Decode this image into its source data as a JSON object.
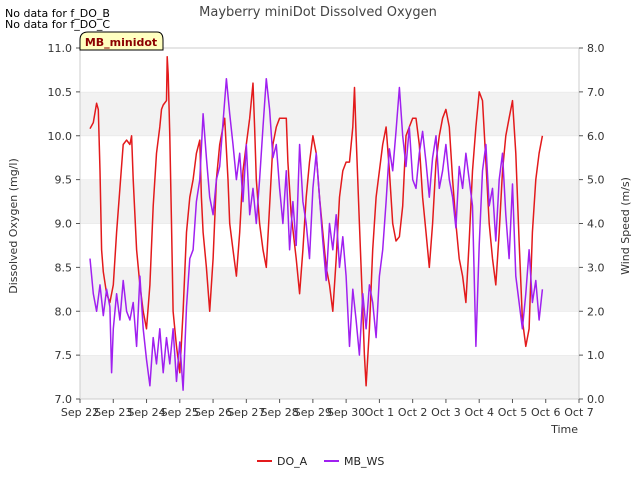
{
  "chart_data": {
    "type": "line",
    "title": "Mayberry miniDot Dissolved Oxygen",
    "xlabel": "Time",
    "ylabel_left": "Dissolved Oxygen (mg/l)",
    "ylabel_right": "Wind Speed (m/s)",
    "x_ticks": [
      "Sep 22",
      "Sep 23",
      "Sep 24",
      "Sep 25",
      "Sep 26",
      "Sep 27",
      "Sep 28",
      "Sep 29",
      "Sep 30",
      "Oct 1",
      "Oct 2",
      "Oct 3",
      "Oct 4",
      "Oct 5",
      "Oct 6",
      "Oct 7"
    ],
    "xlim_days": [
      0,
      15
    ],
    "ylim_left": [
      7.0,
      11.0
    ],
    "ylim_right": [
      0.0,
      8.0
    ],
    "y_ticks_left": [
      "7.0",
      "7.5",
      "8.0",
      "8.5",
      "9.0",
      "9.5",
      "10.0",
      "10.5",
      "11.0"
    ],
    "y_ticks_right": [
      "0.0",
      "1.0",
      "2.0",
      "3.0",
      "4.0",
      "5.0",
      "6.0",
      "7.0",
      "8.0"
    ],
    "grid": "horizontal bands",
    "legend_placement": "bottom-center",
    "no_data_notes": [
      "No data for f_DO_B",
      "No data for f_DO_C"
    ],
    "site_label": "MB_minidot",
    "series": [
      {
        "name": "DO_A",
        "axis": "left",
        "color": "#e31a1c",
        "points": [
          [
            0.3,
            10.08
          ],
          [
            0.4,
            10.15
          ],
          [
            0.5,
            10.37
          ],
          [
            0.55,
            10.3
          ],
          [
            0.6,
            9.6
          ],
          [
            0.65,
            8.7
          ],
          [
            0.7,
            8.45
          ],
          [
            0.8,
            8.2
          ],
          [
            0.9,
            8.1
          ],
          [
            1.0,
            8.3
          ],
          [
            1.1,
            8.9
          ],
          [
            1.2,
            9.4
          ],
          [
            1.3,
            9.9
          ],
          [
            1.4,
            9.95
          ],
          [
            1.5,
            9.9
          ],
          [
            1.55,
            10.0
          ],
          [
            1.6,
            9.5
          ],
          [
            1.7,
            8.7
          ],
          [
            1.8,
            8.3
          ],
          [
            1.9,
            8.0
          ],
          [
            2.0,
            7.8
          ],
          [
            2.1,
            8.3
          ],
          [
            2.2,
            9.2
          ],
          [
            2.3,
            9.8
          ],
          [
            2.4,
            10.1
          ],
          [
            2.45,
            10.3
          ],
          [
            2.5,
            10.35
          ],
          [
            2.6,
            10.4
          ],
          [
            2.62,
            10.9
          ],
          [
            2.65,
            10.7
          ],
          [
            2.7,
            10.0
          ],
          [
            2.75,
            9.0
          ],
          [
            2.8,
            8.0
          ],
          [
            2.9,
            7.6
          ],
          [
            3.0,
            7.3
          ],
          [
            3.1,
            8.0
          ],
          [
            3.2,
            8.9
          ],
          [
            3.3,
            9.3
          ],
          [
            3.4,
            9.5
          ],
          [
            3.5,
            9.8
          ],
          [
            3.6,
            9.95
          ],
          [
            3.65,
            9.3
          ],
          [
            3.7,
            8.9
          ],
          [
            3.8,
            8.5
          ],
          [
            3.9,
            8.0
          ],
          [
            4.0,
            8.6
          ],
          [
            4.1,
            9.5
          ],
          [
            4.2,
            9.9
          ],
          [
            4.3,
            10.1
          ],
          [
            4.35,
            10.2
          ],
          [
            4.45,
            9.5
          ],
          [
            4.5,
            9.0
          ],
          [
            4.6,
            8.7
          ],
          [
            4.7,
            8.4
          ],
          [
            4.8,
            8.9
          ],
          [
            4.9,
            9.6
          ],
          [
            5.0,
            9.9
          ],
          [
            5.1,
            10.2
          ],
          [
            5.2,
            10.6
          ],
          [
            5.25,
            10.1
          ],
          [
            5.3,
            9.5
          ],
          [
            5.4,
            9.0
          ],
          [
            5.5,
            8.7
          ],
          [
            5.6,
            8.5
          ],
          [
            5.7,
            9.2
          ],
          [
            5.8,
            9.9
          ],
          [
            5.9,
            10.1
          ],
          [
            6.0,
            10.2
          ],
          [
            6.2,
            10.2
          ],
          [
            6.25,
            9.7
          ],
          [
            6.35,
            9.1
          ],
          [
            6.5,
            8.6
          ],
          [
            6.6,
            8.2
          ],
          [
            6.7,
            8.7
          ],
          [
            6.8,
            9.3
          ],
          [
            6.9,
            9.7
          ],
          [
            7.0,
            10.0
          ],
          [
            7.1,
            9.8
          ],
          [
            7.2,
            9.3
          ],
          [
            7.3,
            8.9
          ],
          [
            7.4,
            8.5
          ],
          [
            7.5,
            8.3
          ],
          [
            7.6,
            8.0
          ],
          [
            7.7,
            8.6
          ],
          [
            7.8,
            9.3
          ],
          [
            7.9,
            9.6
          ],
          [
            8.0,
            9.7
          ],
          [
            8.1,
            9.7
          ],
          [
            8.2,
            10.1
          ],
          [
            8.25,
            10.55
          ],
          [
            8.3,
            10.0
          ],
          [
            8.4,
            9.0
          ],
          [
            8.5,
            8.0
          ],
          [
            8.55,
            7.5
          ],
          [
            8.6,
            7.15
          ],
          [
            8.7,
            7.8
          ],
          [
            8.8,
            8.7
          ],
          [
            8.9,
            9.3
          ],
          [
            9.0,
            9.6
          ],
          [
            9.1,
            9.9
          ],
          [
            9.2,
            10.1
          ],
          [
            9.3,
            9.6
          ],
          [
            9.4,
            9.0
          ],
          [
            9.5,
            8.8
          ],
          [
            9.6,
            8.85
          ],
          [
            9.7,
            9.2
          ],
          [
            9.8,
            10.0
          ],
          [
            9.9,
            10.1
          ],
          [
            10.0,
            10.2
          ],
          [
            10.1,
            10.2
          ],
          [
            10.2,
            9.9
          ],
          [
            10.3,
            9.3
          ],
          [
            10.4,
            8.9
          ],
          [
            10.5,
            8.5
          ],
          [
            10.6,
            9.0
          ],
          [
            10.7,
            9.7
          ],
          [
            10.8,
            10.0
          ],
          [
            10.9,
            10.2
          ],
          [
            11.0,
            10.3
          ],
          [
            11.1,
            10.1
          ],
          [
            11.2,
            9.5
          ],
          [
            11.3,
            9.0
          ],
          [
            11.4,
            8.6
          ],
          [
            11.5,
            8.4
          ],
          [
            11.6,
            8.1
          ],
          [
            11.7,
            8.8
          ],
          [
            11.8,
            9.6
          ],
          [
            11.9,
            10.1
          ],
          [
            12.0,
            10.5
          ],
          [
            12.1,
            10.4
          ],
          [
            12.2,
            9.7
          ],
          [
            12.3,
            9.0
          ],
          [
            12.4,
            8.6
          ],
          [
            12.5,
            8.3
          ],
          [
            12.6,
            8.9
          ],
          [
            12.7,
            9.6
          ],
          [
            12.8,
            10.0
          ],
          [
            12.9,
            10.2
          ],
          [
            13.0,
            10.4
          ],
          [
            13.1,
            9.8
          ],
          [
            13.2,
            8.8
          ],
          [
            13.3,
            7.9
          ],
          [
            13.4,
            7.6
          ],
          [
            13.5,
            7.8
          ],
          [
            13.6,
            8.9
          ],
          [
            13.7,
            9.5
          ],
          [
            13.8,
            9.8
          ],
          [
            13.9,
            10.0
          ]
        ]
      },
      {
        "name": "MB_WS",
        "axis": "right",
        "color": "#a020f0",
        "points": [
          [
            0.3,
            3.2
          ],
          [
            0.4,
            2.4
          ],
          [
            0.5,
            2.0
          ],
          [
            0.6,
            2.6
          ],
          [
            0.7,
            1.9
          ],
          [
            0.8,
            2.5
          ],
          [
            0.9,
            2.1
          ],
          [
            0.95,
            0.6
          ],
          [
            1.0,
            1.6
          ],
          [
            1.1,
            2.4
          ],
          [
            1.2,
            1.8
          ],
          [
            1.3,
            2.7
          ],
          [
            1.4,
            2.0
          ],
          [
            1.5,
            1.8
          ],
          [
            1.6,
            2.2
          ],
          [
            1.7,
            1.2
          ],
          [
            1.8,
            2.8
          ],
          [
            1.9,
            1.6
          ],
          [
            2.0,
            0.9
          ],
          [
            2.1,
            0.3
          ],
          [
            2.2,
            1.4
          ],
          [
            2.3,
            0.8
          ],
          [
            2.4,
            1.6
          ],
          [
            2.5,
            0.6
          ],
          [
            2.6,
            1.4
          ],
          [
            2.7,
            0.8
          ],
          [
            2.8,
            1.6
          ],
          [
            2.9,
            0.4
          ],
          [
            3.0,
            1.3
          ],
          [
            3.1,
            0.2
          ],
          [
            3.2,
            2.1
          ],
          [
            3.3,
            3.2
          ],
          [
            3.4,
            3.4
          ],
          [
            3.5,
            4.5
          ],
          [
            3.6,
            5.0
          ],
          [
            3.7,
            6.5
          ],
          [
            3.8,
            5.5
          ],
          [
            3.9,
            4.6
          ],
          [
            4.0,
            4.2
          ],
          [
            4.1,
            5.0
          ],
          [
            4.2,
            5.3
          ],
          [
            4.3,
            6.3
          ],
          [
            4.4,
            7.3
          ],
          [
            4.5,
            6.5
          ],
          [
            4.6,
            5.8
          ],
          [
            4.7,
            5.0
          ],
          [
            4.8,
            5.6
          ],
          [
            4.9,
            4.5
          ],
          [
            5.0,
            5.8
          ],
          [
            5.1,
            4.2
          ],
          [
            5.2,
            4.8
          ],
          [
            5.3,
            4.0
          ],
          [
            5.4,
            5.0
          ],
          [
            5.5,
            6.2
          ],
          [
            5.6,
            7.3
          ],
          [
            5.7,
            6.6
          ],
          [
            5.8,
            5.5
          ],
          [
            5.9,
            5.8
          ],
          [
            6.0,
            4.8
          ],
          [
            6.1,
            4.0
          ],
          [
            6.2,
            5.2
          ],
          [
            6.3,
            3.4
          ],
          [
            6.4,
            4.5
          ],
          [
            6.5,
            3.5
          ],
          [
            6.6,
            5.8
          ],
          [
            6.7,
            4.5
          ],
          [
            6.8,
            4.0
          ],
          [
            6.9,
            3.2
          ],
          [
            7.0,
            4.8
          ],
          [
            7.1,
            5.6
          ],
          [
            7.2,
            4.6
          ],
          [
            7.3,
            3.6
          ],
          [
            7.4,
            2.7
          ],
          [
            7.5,
            4.0
          ],
          [
            7.6,
            3.4
          ],
          [
            7.7,
            4.2
          ],
          [
            7.8,
            3.0
          ],
          [
            7.9,
            3.7
          ],
          [
            8.0,
            2.8
          ],
          [
            8.1,
            1.2
          ],
          [
            8.2,
            2.5
          ],
          [
            8.3,
            1.8
          ],
          [
            8.4,
            1.0
          ],
          [
            8.5,
            2.4
          ],
          [
            8.6,
            1.6
          ],
          [
            8.7,
            2.6
          ],
          [
            8.8,
            2.2
          ],
          [
            8.9,
            1.4
          ],
          [
            9.0,
            2.8
          ],
          [
            9.1,
            3.4
          ],
          [
            9.2,
            4.5
          ],
          [
            9.3,
            5.7
          ],
          [
            9.4,
            5.2
          ],
          [
            9.5,
            6.1
          ],
          [
            9.6,
            7.1
          ],
          [
            9.7,
            6.0
          ],
          [
            9.8,
            5.3
          ],
          [
            9.9,
            6.2
          ],
          [
            10.0,
            5.0
          ],
          [
            10.1,
            4.8
          ],
          [
            10.2,
            5.6
          ],
          [
            10.3,
            6.1
          ],
          [
            10.4,
            5.4
          ],
          [
            10.5,
            4.6
          ],
          [
            10.6,
            5.5
          ],
          [
            10.7,
            6.0
          ],
          [
            10.8,
            4.8
          ],
          [
            10.9,
            5.2
          ],
          [
            11.0,
            5.8
          ],
          [
            11.1,
            5.0
          ],
          [
            11.2,
            4.6
          ],
          [
            11.3,
            3.9
          ],
          [
            11.4,
            5.3
          ],
          [
            11.5,
            4.8
          ],
          [
            11.6,
            5.6
          ],
          [
            11.7,
            5.0
          ],
          [
            11.8,
            4.4
          ],
          [
            11.9,
            1.2
          ],
          [
            12.0,
            3.5
          ],
          [
            12.1,
            5.2
          ],
          [
            12.2,
            5.8
          ],
          [
            12.3,
            4.4
          ],
          [
            12.4,
            4.8
          ],
          [
            12.5,
            3.6
          ],
          [
            12.6,
            5.0
          ],
          [
            12.7,
            5.6
          ],
          [
            12.8,
            4.2
          ],
          [
            12.9,
            3.2
          ],
          [
            13.0,
            4.9
          ],
          [
            13.1,
            2.8
          ],
          [
            13.2,
            2.2
          ],
          [
            13.3,
            1.6
          ],
          [
            13.4,
            2.4
          ],
          [
            13.5,
            3.4
          ],
          [
            13.6,
            2.2
          ],
          [
            13.7,
            2.7
          ],
          [
            13.8,
            1.8
          ],
          [
            13.9,
            2.5
          ]
        ]
      }
    ]
  }
}
